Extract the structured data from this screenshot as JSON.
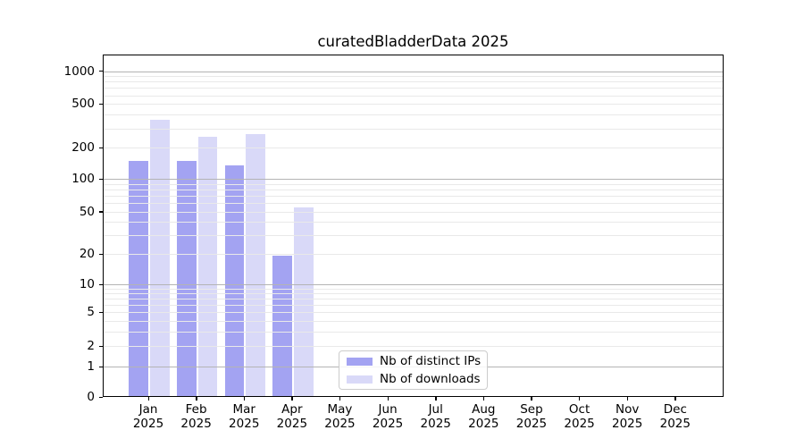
{
  "figure": {
    "title": "curatedBladderData 2025",
    "background_color": "#ffffff"
  },
  "legend": {
    "items": [
      {
        "label": "Nb of distinct IPs",
        "color": "#a3a3f2"
      },
      {
        "label": "Nb of downloads",
        "color": "#d9d9f8"
      }
    ]
  },
  "chart_data": {
    "type": "bar",
    "title": "curatedBladderData 2025",
    "categories": [
      "Jan 2025",
      "Feb 2025",
      "Mar 2025",
      "Apr 2025",
      "May 2025",
      "Jun 2025",
      "Jul 2025",
      "Aug 2025",
      "Sep 2025",
      "Oct 2025",
      "Nov 2025",
      "Dec 2025"
    ],
    "x_tick_months": [
      "Jan",
      "Feb",
      "Mar",
      "Apr",
      "May",
      "Jun",
      "Jul",
      "Aug",
      "Sep",
      "Oct",
      "Nov",
      "Dec"
    ],
    "x_tick_year": "2025",
    "series": [
      {
        "name": "Nb of distinct IPs",
        "color": "#a3a3f2",
        "values": [
          145,
          145,
          133,
          19,
          0,
          0,
          0,
          0,
          0,
          0,
          0,
          0
        ]
      },
      {
        "name": "Nb of downloads",
        "color": "#d9d9f8",
        "values": [
          350,
          245,
          260,
          54,
          0,
          0,
          0,
          0,
          0,
          0,
          0,
          0
        ]
      }
    ],
    "y_ticks": [
      0,
      1,
      2,
      5,
      10,
      20,
      50,
      100,
      200,
      500,
      1000
    ],
    "y_scale": "symlog (linear 0-1, log above)",
    "ylim": [
      0,
      1400
    ],
    "xlabel": "",
    "ylabel": "",
    "grid": "horizontal major (decades) and minor (2-9 per decade) gridlines, drawn above bars",
    "legend_position": "inside axes, lower center-left"
  }
}
